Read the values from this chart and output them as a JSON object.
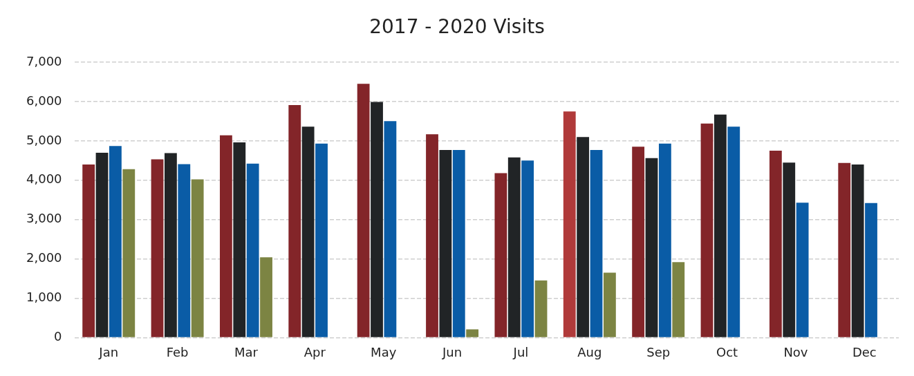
{
  "chart_data": {
    "type": "bar",
    "title": "2017 - 2020 Visits",
    "categories": [
      "Jan",
      "Feb",
      "Mar",
      "Apr",
      "May",
      "Jun",
      "Jul",
      "Aug",
      "Sep",
      "Oct",
      "Nov",
      "Dec"
    ],
    "series": [
      {
        "color": "#832529",
        "colors": [
          "#832529",
          "#832529",
          "#832529",
          "#832529",
          "#832529",
          "#832529",
          "#832529",
          "#b03a3a",
          "#832529",
          "#832529",
          "#832529",
          "#832529"
        ],
        "values": [
          4400,
          4530,
          5140,
          5910,
          6450,
          5170,
          4180,
          5750,
          4850,
          5440,
          4750,
          4440
        ]
      },
      {
        "color": "#212426",
        "values": [
          4700,
          4690,
          4960,
          5360,
          5990,
          4770,
          4580,
          5100,
          4560,
          5670,
          4450,
          4400
        ]
      },
      {
        "color": "#0a5ca6",
        "values": [
          4870,
          4410,
          4420,
          4930,
          5500,
          4770,
          4500,
          4770,
          4930,
          5360,
          3430,
          3420
        ]
      },
      {
        "color": "#7c8443",
        "values": [
          4280,
          4020,
          2040,
          null,
          null,
          210,
          1450,
          1650,
          1920,
          null,
          null,
          null
        ]
      }
    ],
    "ylim": [
      0,
      7000
    ],
    "yticks": [
      {
        "value": 0,
        "label": "0"
      },
      {
        "value": 1000,
        "label": "1,000"
      },
      {
        "value": 2000,
        "label": "2,000"
      },
      {
        "value": 3000,
        "label": "3,000"
      },
      {
        "value": 4000,
        "label": "4,000"
      },
      {
        "value": 5000,
        "label": "5,000"
      },
      {
        "value": 6000,
        "label": "6,000"
      },
      {
        "value": 7000,
        "label": "7,000"
      }
    ],
    "grid": "y"
  }
}
